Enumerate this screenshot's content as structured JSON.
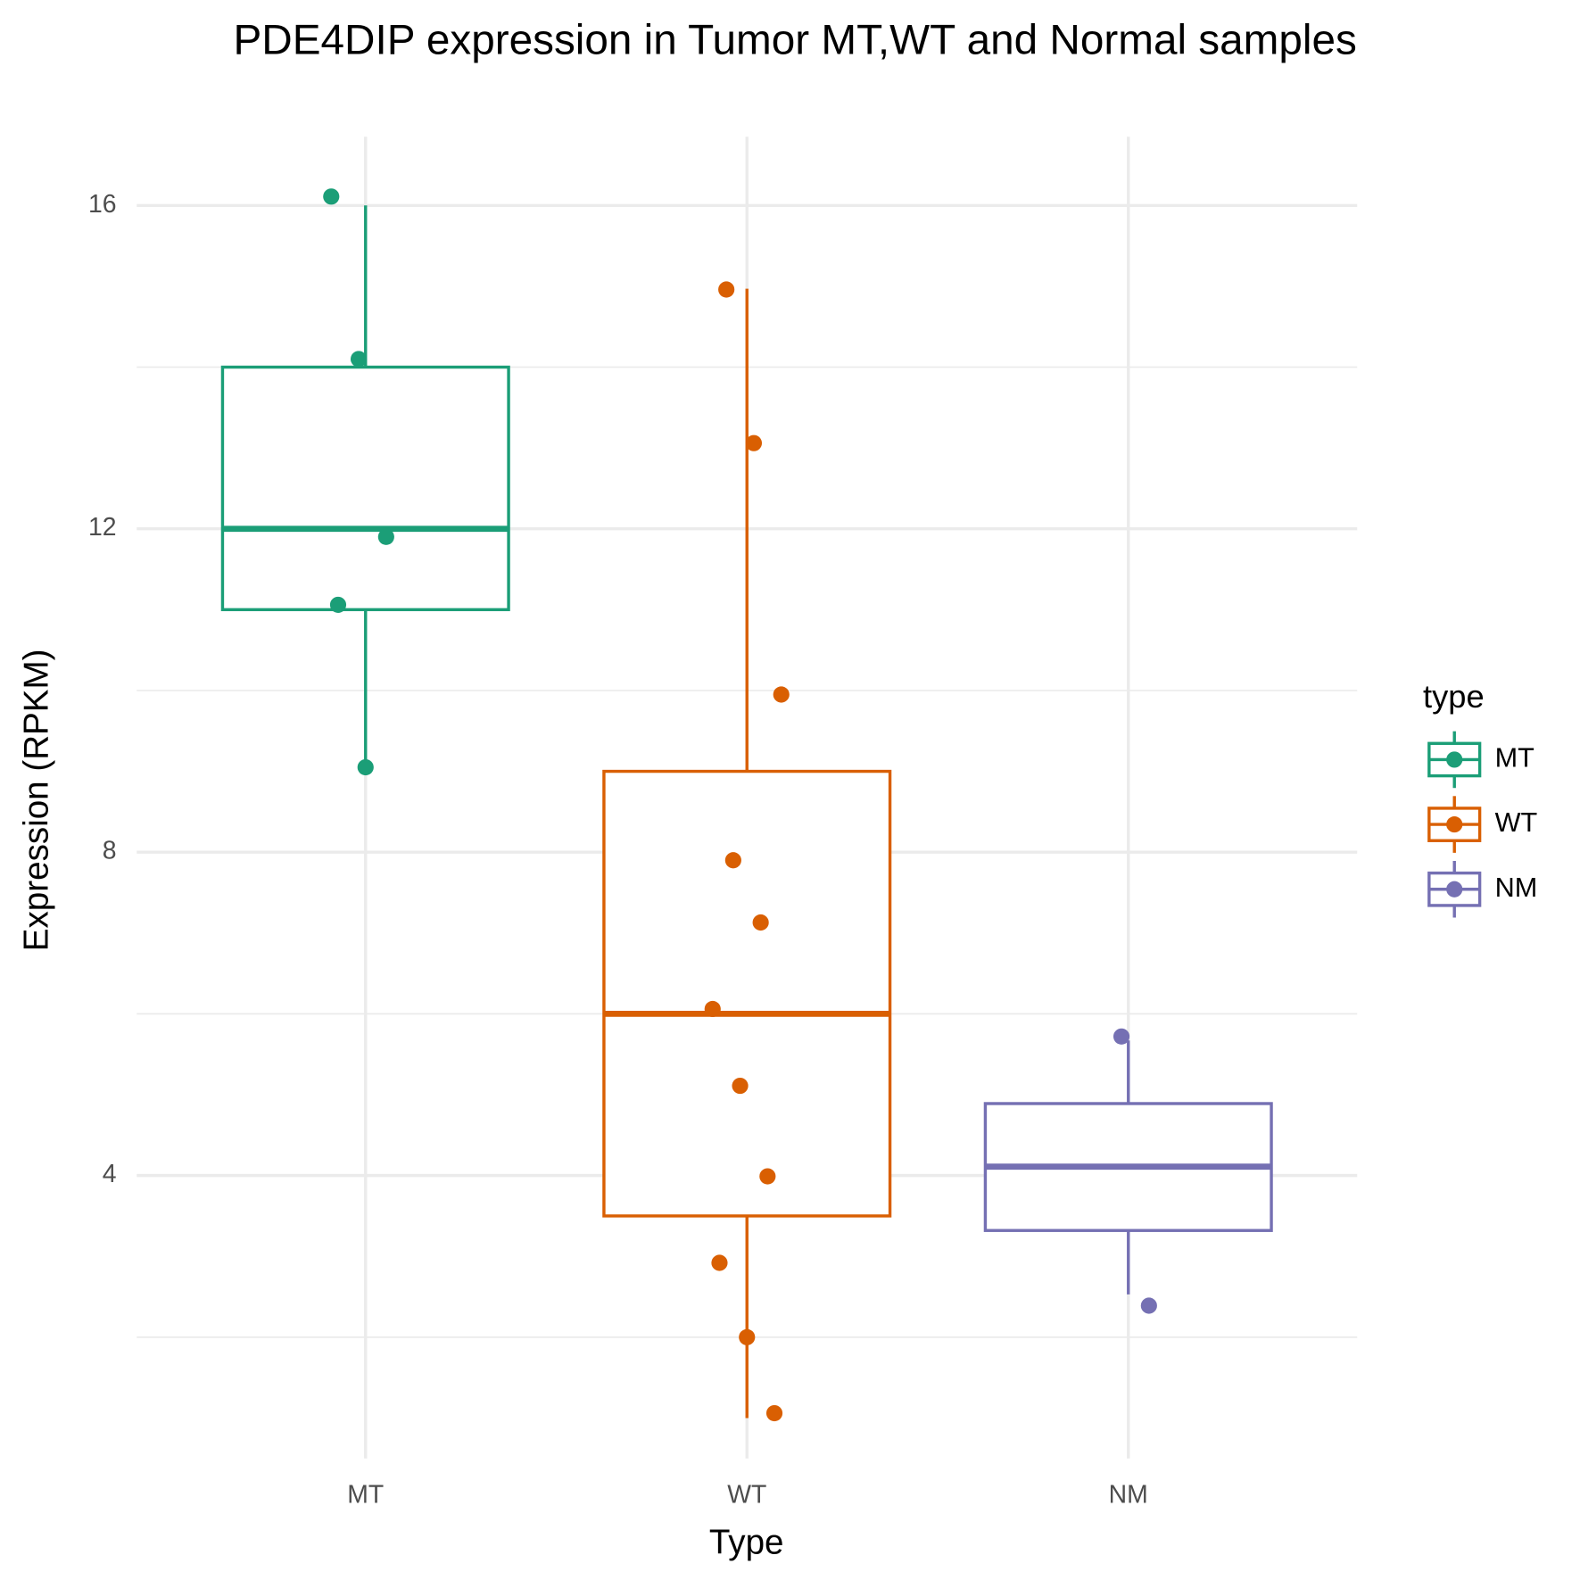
{
  "chart_data": {
    "type": "boxplot",
    "title": "PDE4DIP expression in Tumor MT,WT and Normal samples",
    "x_label": "Type",
    "y_label": "Expression (RPKM)",
    "legend_title": "type",
    "legend_position": "right",
    "grid": true,
    "categories": [
      "MT",
      "WT",
      "NM"
    ],
    "ylim": [
      0.5,
      16.85
    ],
    "yticks": [
      4,
      8,
      12,
      16
    ],
    "minor_yticks": [
      2,
      6,
      10,
      14
    ],
    "series": [
      {
        "name": "MT",
        "color": "#1b9e77",
        "whisker_low": 9.0,
        "q1": 11.0,
        "median": 12.0,
        "q3": 14.0,
        "whisker_high": 16.0,
        "points": [
          16.11,
          14.1,
          11.9,
          11.06,
          9.05
        ]
      },
      {
        "name": "WT",
        "color": "#d95f02",
        "whisker_low": 1.0,
        "q1": 3.5,
        "median": 6.0,
        "q3": 9.0,
        "whisker_high": 14.97,
        "points": [
          14.96,
          13.06,
          9.95,
          7.9,
          7.13,
          6.06,
          5.11,
          3.99,
          2.92,
          2.0,
          1.06
        ]
      },
      {
        "name": "NM",
        "color": "#7570b3",
        "whisker_low": 2.53,
        "q1": 3.32,
        "median": 4.11,
        "q3": 4.89,
        "whisker_high": 5.67,
        "points": [
          5.72,
          2.39
        ]
      }
    ]
  }
}
